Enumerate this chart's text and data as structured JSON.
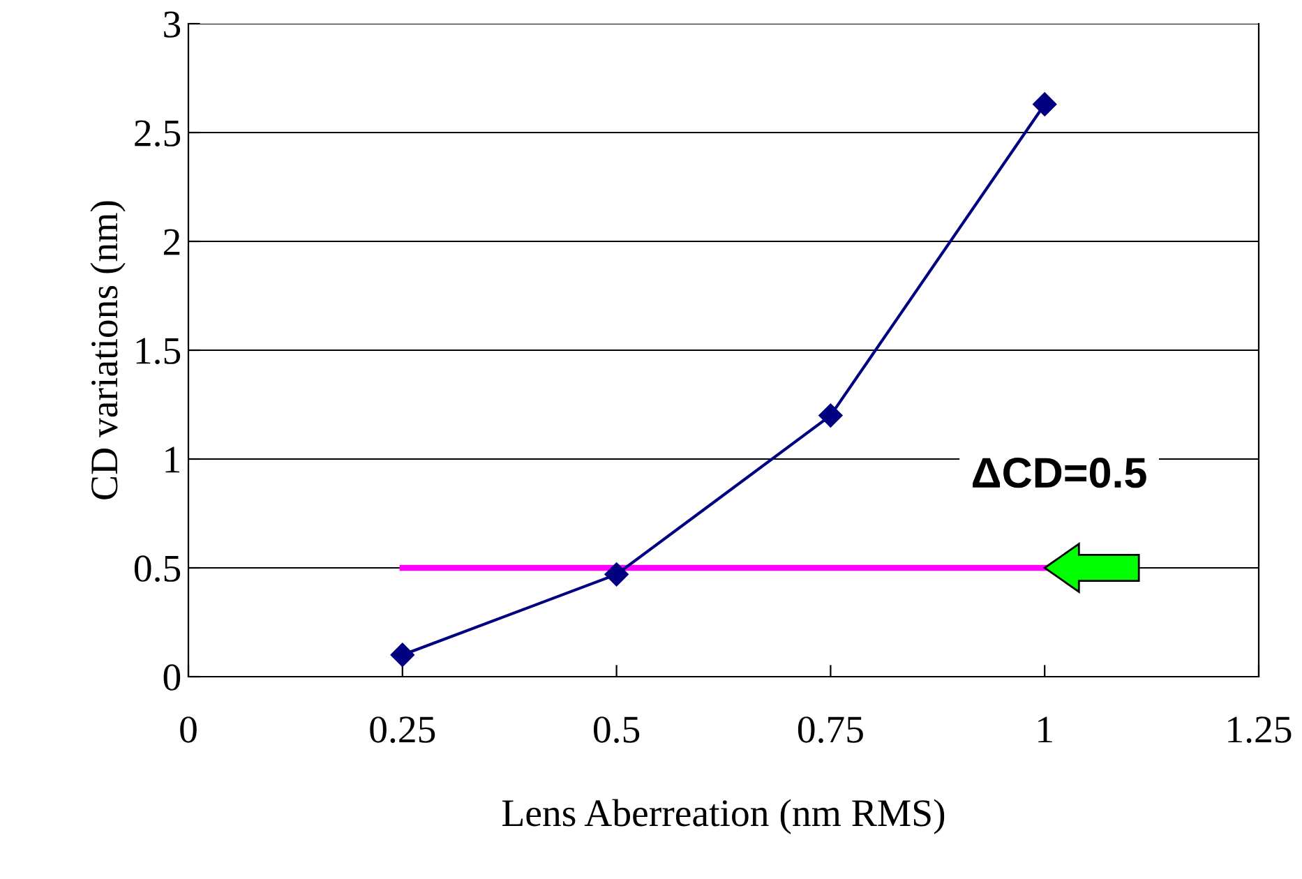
{
  "chart_data": {
    "type": "line",
    "xlabel": "Lens Aberreation (nm RMS)",
    "ylabel": "CD variations (nm)",
    "series": [
      {
        "x": [
          0.25,
          0.5,
          0.75,
          1.0
        ],
        "values": [
          0.1,
          0.47,
          1.2,
          2.63
        ],
        "color": "#000080"
      }
    ],
    "xlim": [
      0,
      1.25
    ],
    "xticks": [
      0,
      0.25,
      0.5,
      0.75,
      1,
      1.25
    ],
    "ylim": [
      0,
      3
    ],
    "yticks": [
      0,
      0.5,
      1,
      1.5,
      2,
      2.5,
      3
    ],
    "grid": "y",
    "marker": "diamond",
    "line_style": "solid",
    "legend": false,
    "ref_lines": [
      {
        "axis": "y",
        "value": 0.5,
        "label": "ΔCD=0.5",
        "color": "#ff00ff"
      }
    ]
  }
}
